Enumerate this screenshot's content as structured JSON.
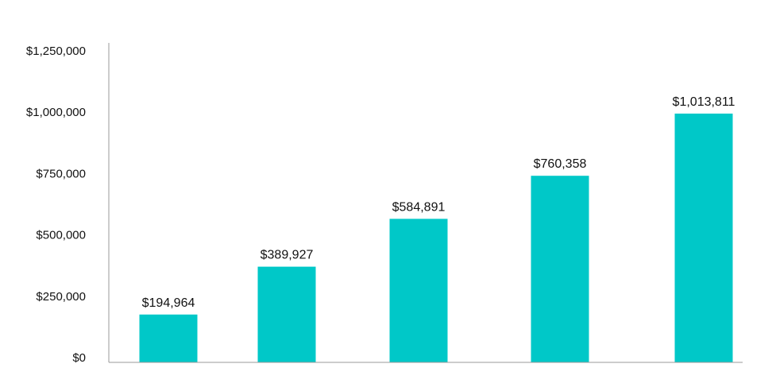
{
  "chart_data": {
    "type": "bar",
    "title": "",
    "xlabel": "",
    "ylabel": "",
    "categories": [
      "",
      "",
      "",
      "",
      ""
    ],
    "values": [
      194964,
      389927,
      584891,
      760358,
      1013811
    ],
    "data_labels": [
      "$194,964",
      "$389,927",
      "$584,891",
      "$760,358",
      "$1,013,811"
    ],
    "y_ticks": [
      0,
      250000,
      500000,
      750000,
      1000000,
      1250000
    ],
    "y_tick_labels": [
      "$0",
      "$250,000",
      "$500,000",
      "$750,000",
      "$1,000,000",
      "$1,250,000"
    ],
    "ylim": [
      0,
      1250000
    ],
    "grid": false,
    "legend": "none",
    "colors": {
      "bar": "#00c8c8",
      "axis": "#9a9a9a",
      "text": "#111111"
    }
  }
}
